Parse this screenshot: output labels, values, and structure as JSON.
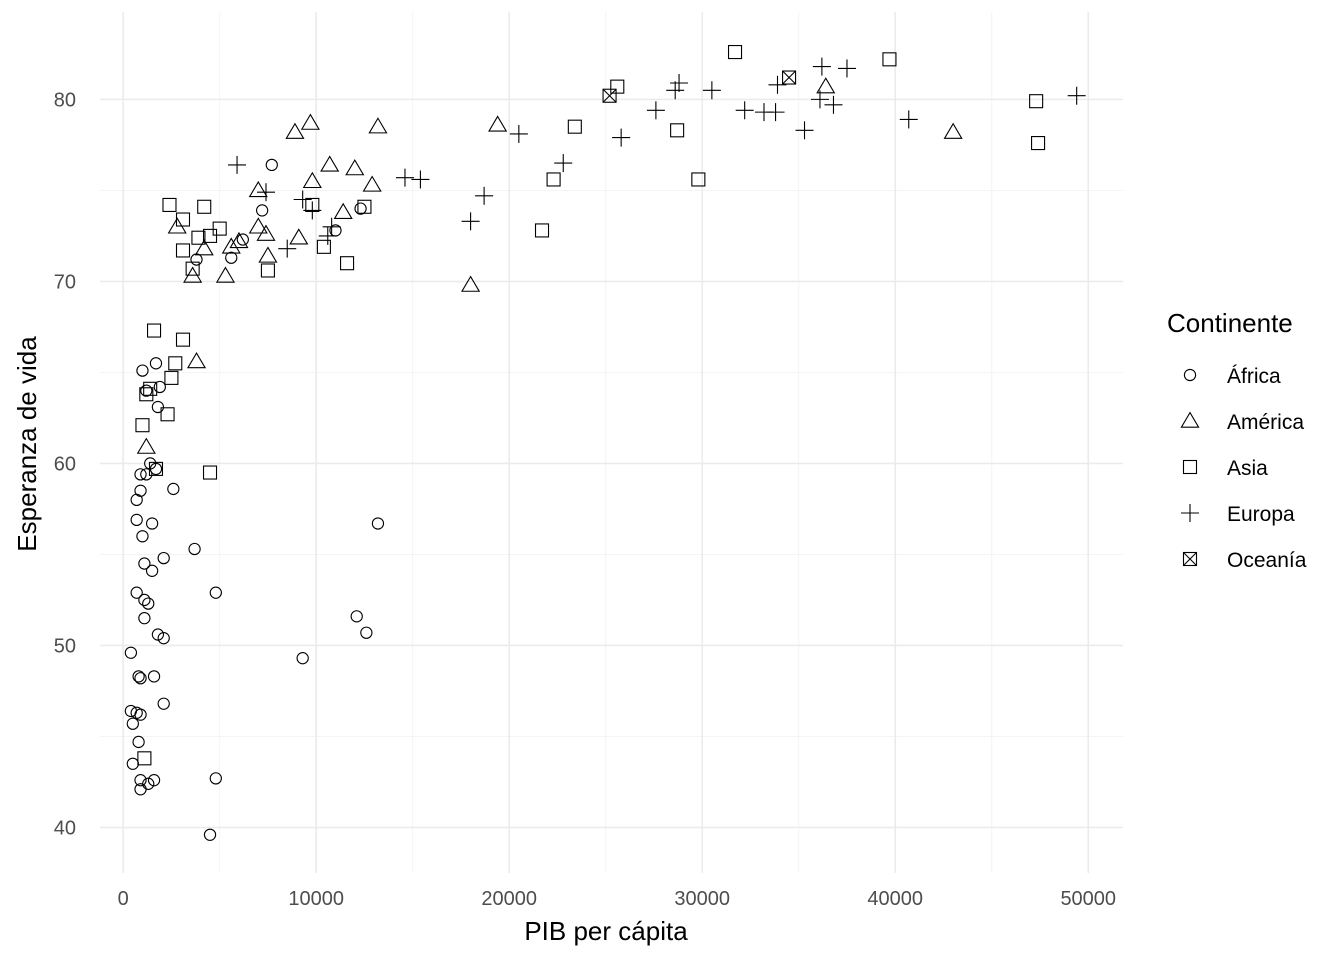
{
  "chart_data": {
    "type": "scatter",
    "title": "",
    "xlabel": "PIB per cápita",
    "ylabel": "Esperanza de vida",
    "xlim": [
      -1200,
      51800
    ],
    "ylim": [
      37.5,
      84.8
    ],
    "x_ticks": [
      0,
      10000,
      20000,
      30000,
      40000,
      50000
    ],
    "x_tick_labels": [
      "0",
      "10000",
      "20000",
      "30000",
      "40000",
      "50000"
    ],
    "y_ticks": [
      40,
      50,
      60,
      70,
      80
    ],
    "y_tick_labels": [
      "40",
      "50",
      "60",
      "70",
      "80"
    ],
    "grid": true,
    "legend": {
      "title": "Continente",
      "position": "right",
      "entries": [
        {
          "label": "África",
          "shape": "circle"
        },
        {
          "label": "América",
          "shape": "triangle"
        },
        {
          "label": "Asia",
          "shape": "square"
        },
        {
          "label": "Europa",
          "shape": "plus"
        },
        {
          "label": "Oceanía",
          "shape": "square-x"
        }
      ]
    },
    "series": [
      {
        "name": "África",
        "shape": "circle",
        "points": [
          [
            7700,
            76.4
          ],
          [
            7200,
            73.9
          ],
          [
            6200,
            72.3
          ],
          [
            5600,
            71.3
          ],
          [
            3800,
            71.2
          ],
          [
            12300,
            74.0
          ],
          [
            11000,
            72.8
          ],
          [
            1000,
            65.1
          ],
          [
            1700,
            65.5
          ],
          [
            1900,
            64.2
          ],
          [
            1200,
            64.0
          ],
          [
            1800,
            63.1
          ],
          [
            1400,
            60.0
          ],
          [
            1700,
            59.7
          ],
          [
            900,
            59.4
          ],
          [
            1200,
            59.4
          ],
          [
            900,
            58.5
          ],
          [
            2600,
            58.6
          ],
          [
            700,
            58.0
          ],
          [
            700,
            56.9
          ],
          [
            1500,
            56.7
          ],
          [
            13200,
            56.7
          ],
          [
            1000,
            56.0
          ],
          [
            3700,
            55.3
          ],
          [
            2100,
            54.8
          ],
          [
            1100,
            54.5
          ],
          [
            1500,
            54.1
          ],
          [
            700,
            52.9
          ],
          [
            4800,
            52.9
          ],
          [
            1100,
            52.5
          ],
          [
            1300,
            52.3
          ],
          [
            12100,
            51.6
          ],
          [
            1100,
            51.5
          ],
          [
            12600,
            50.7
          ],
          [
            1800,
            50.6
          ],
          [
            2100,
            50.4
          ],
          [
            400,
            49.6
          ],
          [
            9300,
            49.3
          ],
          [
            800,
            48.3
          ],
          [
            900,
            48.2
          ],
          [
            1600,
            48.3
          ],
          [
            2100,
            46.8
          ],
          [
            400,
            46.4
          ],
          [
            700,
            46.3
          ],
          [
            900,
            46.2
          ],
          [
            500,
            45.7
          ],
          [
            800,
            44.7
          ],
          [
            500,
            43.5
          ],
          [
            900,
            42.6
          ],
          [
            1300,
            42.4
          ],
          [
            1600,
            42.6
          ],
          [
            900,
            42.1
          ],
          [
            4800,
            42.7
          ],
          [
            4500,
            39.6
          ]
        ]
      },
      {
        "name": "América",
        "shape": "triangle",
        "points": [
          [
            9700,
            78.7
          ],
          [
            8900,
            78.2
          ],
          [
            13200,
            78.5
          ],
          [
            19400,
            78.6
          ],
          [
            36400,
            80.7
          ],
          [
            43000,
            78.2
          ],
          [
            10700,
            76.4
          ],
          [
            12000,
            76.2
          ],
          [
            9800,
            75.5
          ],
          [
            12900,
            75.3
          ],
          [
            7000,
            75.0
          ],
          [
            11400,
            73.8
          ],
          [
            7000,
            73.0
          ],
          [
            2800,
            73.0
          ],
          [
            7400,
            72.6
          ],
          [
            9100,
            72.4
          ],
          [
            6000,
            72.2
          ],
          [
            5600,
            71.9
          ],
          [
            4200,
            71.8
          ],
          [
            7500,
            71.4
          ],
          [
            3600,
            70.3
          ],
          [
            5300,
            70.3
          ],
          [
            18000,
            69.8
          ],
          [
            3800,
            65.6
          ],
          [
            1200,
            60.9
          ]
        ]
      },
      {
        "name": "Asia",
        "shape": "square",
        "points": [
          [
            31700,
            82.6
          ],
          [
            39700,
            82.2
          ],
          [
            25600,
            80.7
          ],
          [
            47300,
            79.9
          ],
          [
            23400,
            78.5
          ],
          [
            28700,
            78.3
          ],
          [
            47400,
            77.6
          ],
          [
            22300,
            75.6
          ],
          [
            29800,
            75.6
          ],
          [
            2400,
            74.2
          ],
          [
            4200,
            74.1
          ],
          [
            12500,
            74.1
          ],
          [
            3100,
            73.4
          ],
          [
            9800,
            74.2
          ],
          [
            5000,
            72.9
          ],
          [
            21700,
            72.8
          ],
          [
            4500,
            72.5
          ],
          [
            3900,
            72.4
          ],
          [
            10400,
            71.9
          ],
          [
            3100,
            71.7
          ],
          [
            11600,
            71.0
          ],
          [
            3600,
            70.7
          ],
          [
            7500,
            70.6
          ],
          [
            1600,
            67.3
          ],
          [
            3100,
            66.8
          ],
          [
            2700,
            65.5
          ],
          [
            2500,
            64.7
          ],
          [
            1400,
            64.1
          ],
          [
            1200,
            63.8
          ],
          [
            2300,
            62.7
          ],
          [
            1000,
            62.1
          ],
          [
            1700,
            59.7
          ],
          [
            4500,
            59.5
          ],
          [
            1100,
            43.8
          ]
        ]
      },
      {
        "name": "Europa",
        "shape": "plus",
        "points": [
          [
            36200,
            81.8
          ],
          [
            37500,
            81.7
          ],
          [
            28800,
            80.9
          ],
          [
            28600,
            80.5
          ],
          [
            30500,
            80.5
          ],
          [
            36100,
            80.0
          ],
          [
            49400,
            80.2
          ],
          [
            33900,
            80.8
          ],
          [
            32200,
            79.4
          ],
          [
            33200,
            79.3
          ],
          [
            33800,
            79.3
          ],
          [
            36800,
            79.7
          ],
          [
            27600,
            79.4
          ],
          [
            40700,
            78.9
          ],
          [
            20500,
            78.1
          ],
          [
            25800,
            77.9
          ],
          [
            35300,
            78.3
          ],
          [
            22800,
            76.5
          ],
          [
            5900,
            76.4
          ],
          [
            14600,
            75.7
          ],
          [
            15400,
            75.6
          ],
          [
            7400,
            74.9
          ],
          [
            18700,
            74.7
          ],
          [
            9300,
            74.5
          ],
          [
            9800,
            73.9
          ],
          [
            18000,
            73.3
          ],
          [
            10800,
            73.0
          ],
          [
            10600,
            72.5
          ],
          [
            8500,
            71.8
          ]
        ]
      },
      {
        "name": "Oceanía",
        "shape": "square-x",
        "points": [
          [
            34500,
            81.2
          ],
          [
            25200,
            80.2
          ]
        ]
      }
    ]
  }
}
